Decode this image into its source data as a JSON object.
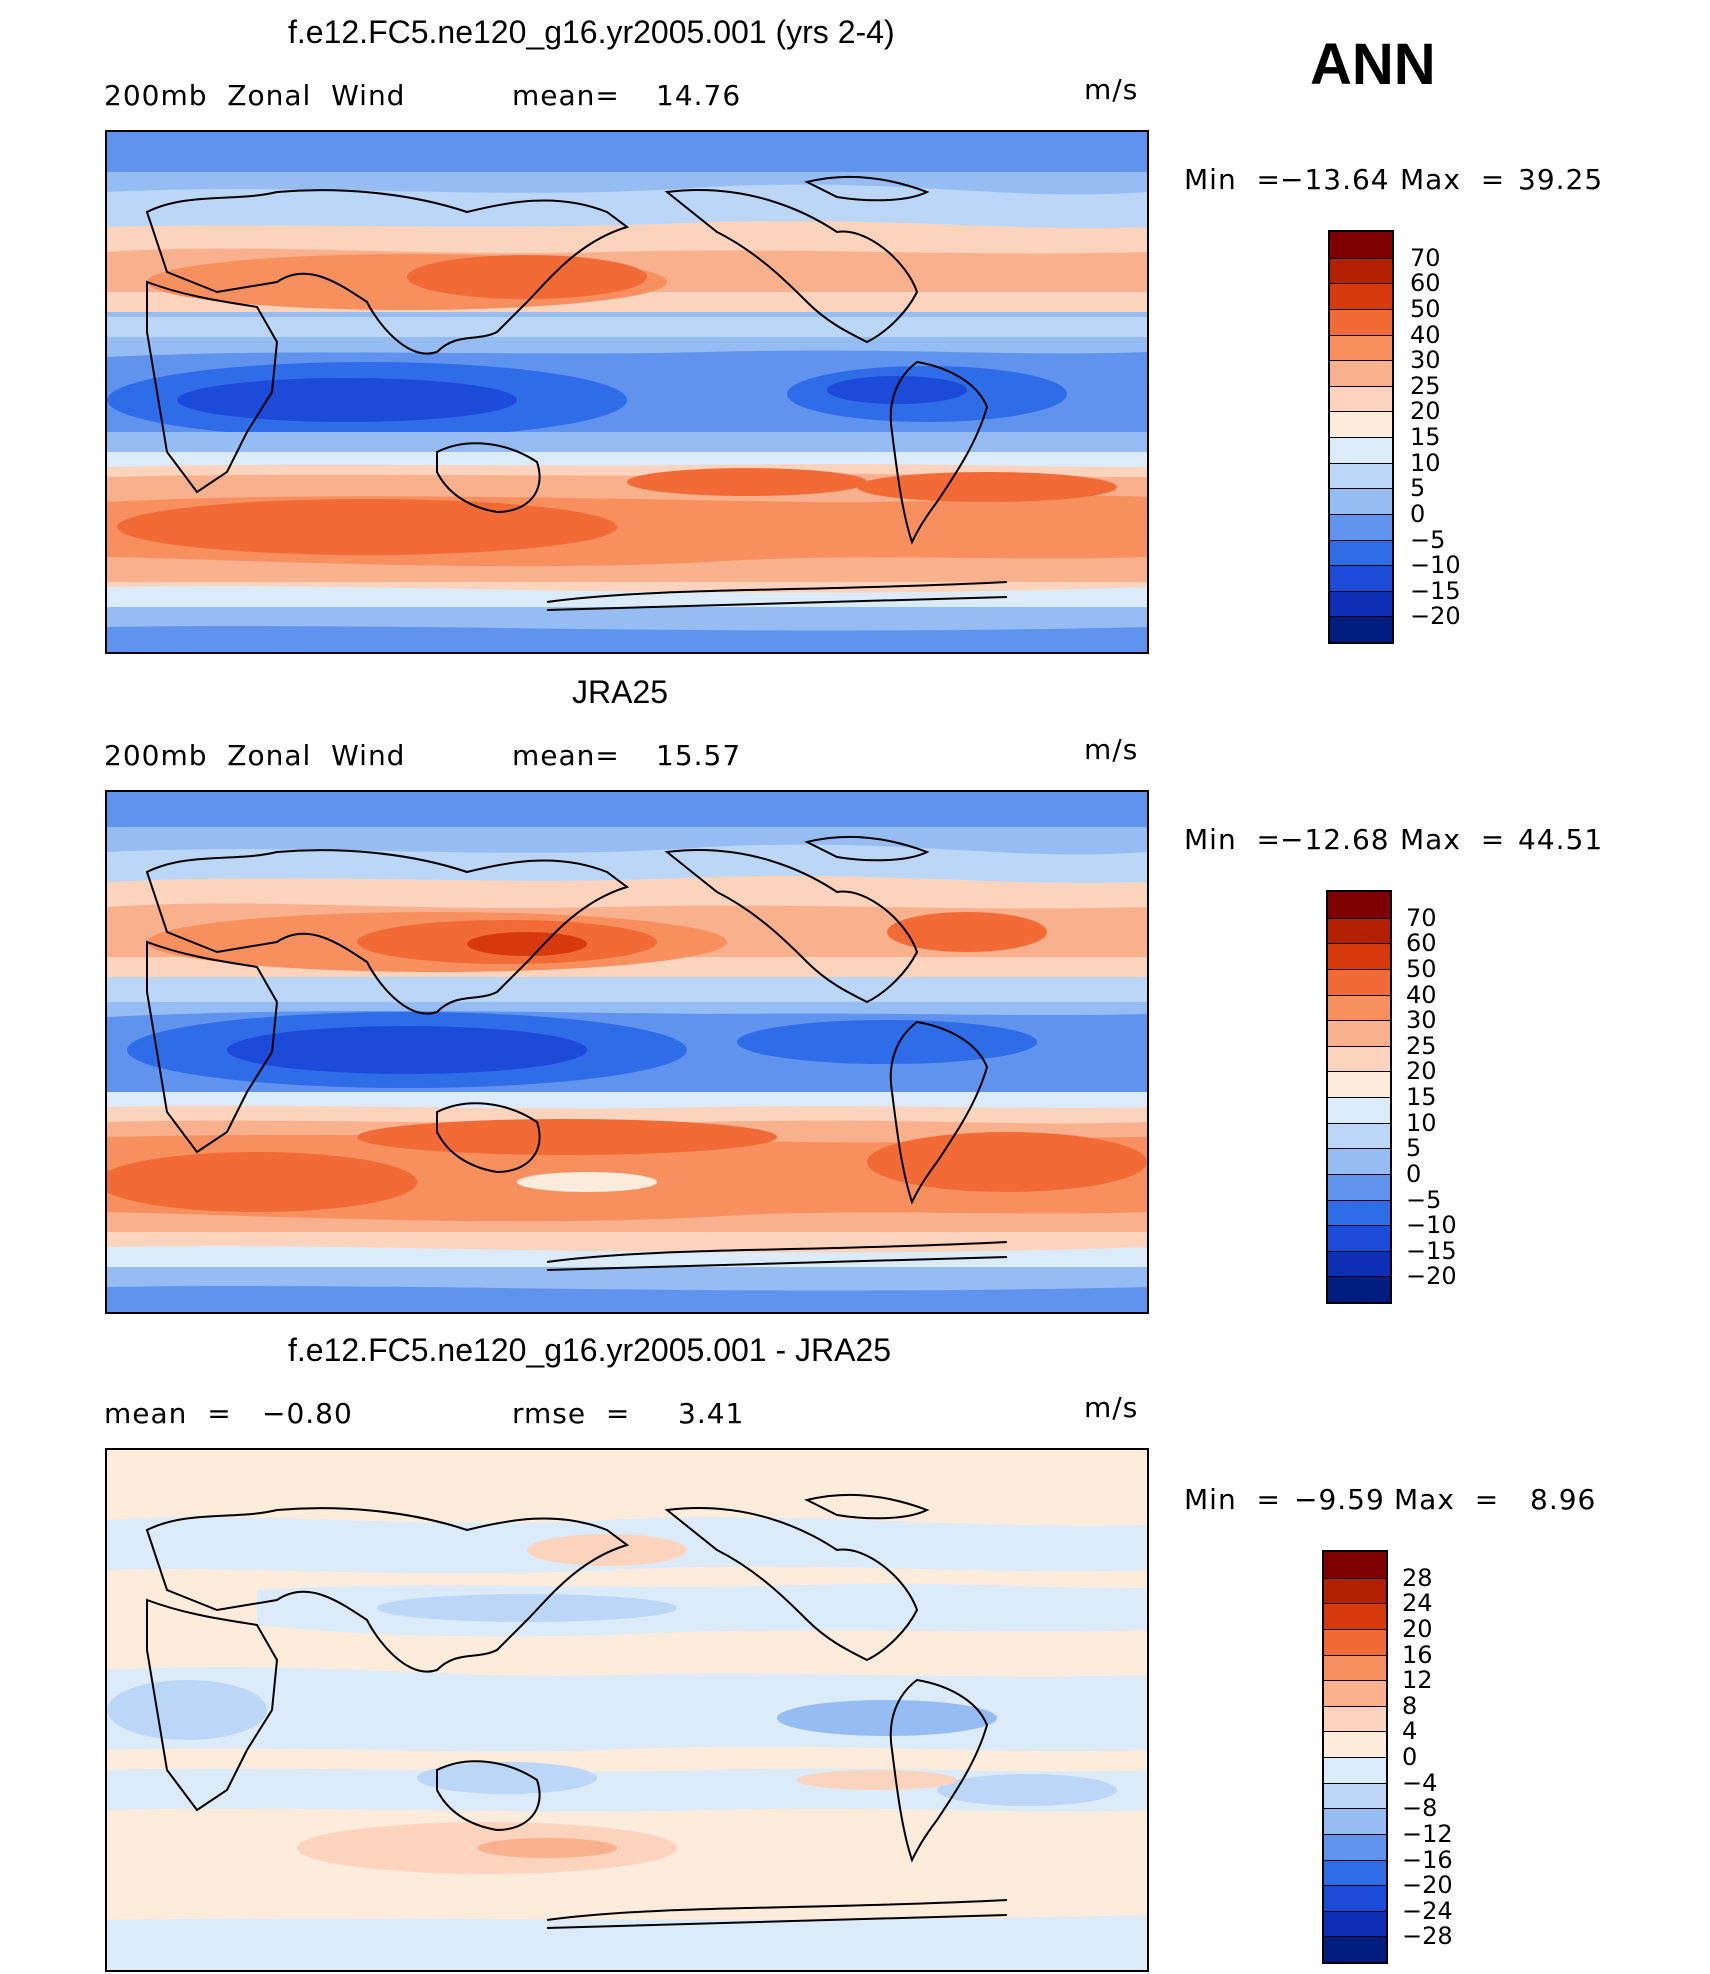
{
  "season": "ANN",
  "units": "m/s",
  "panels": [
    {
      "title": "f.e12.FC5.ne120_g16.yr2005.001 (yrs 2-4)",
      "left_label": "200mb  Zonal  Wind",
      "stat_label": "mean=",
      "stat_value": "14.76",
      "units": "m/s",
      "min_label": "Min  =",
      "min_value": "−13.64",
      "max_label": "Max  =",
      "max_value": "39.25",
      "colorbar_levels": [
        "70",
        "60",
        "50",
        "40",
        "30",
        "25",
        "20",
        "15",
        "10",
        "5",
        "0",
        "−5",
        "−10",
        "−15",
        "−20"
      ]
    },
    {
      "title": "JRA25",
      "left_label": "200mb  Zonal  Wind",
      "stat_label": "mean=",
      "stat_value": "15.57",
      "units": "m/s",
      "min_label": "Min  =",
      "min_value": "−12.68",
      "max_label": "Max  =",
      "max_value": "44.51",
      "colorbar_levels": [
        "70",
        "60",
        "50",
        "40",
        "30",
        "25",
        "20",
        "15",
        "10",
        "5",
        "0",
        "−5",
        "−10",
        "−15",
        "−20"
      ]
    },
    {
      "title": "f.e12.FC5.ne120_g16.yr2005.001 - JRA25",
      "left_label": "mean  =",
      "left_value": "−0.80",
      "stat_label": "rmse  =",
      "stat_value": "3.41",
      "units": "m/s",
      "min_label": "Min  =",
      "min_value": "−9.59",
      "max_label": "Max  =",
      "max_value": "8.96",
      "colorbar_levels": [
        "28",
        "24",
        "20",
        "16",
        "12",
        "8",
        "4",
        "0",
        "−4",
        "−8",
        "−12",
        "−16",
        "−20",
        "−24",
        "−28"
      ]
    }
  ],
  "colors": {
    "field_scale": [
      "#7f0000",
      "#b22000",
      "#d63a0c",
      "#f26a35",
      "#f7905e",
      "#f9b08d",
      "#fcd4bd",
      "#fdebdc",
      "#dcebfa",
      "#bcd6f7",
      "#95bdf3",
      "#5f93ee",
      "#2f6ce8",
      "#1b4bd8",
      "#0d2fb5",
      "#001c7f"
    ],
    "diff_scale": [
      "#7f0000",
      "#b22000",
      "#d63a0c",
      "#f26a35",
      "#f7905e",
      "#f9b08d",
      "#fcd4bd",
      "#fdebdc",
      "#dcebfa",
      "#bcd6f7",
      "#95bdf3",
      "#5f93ee",
      "#2f6ce8",
      "#1b4bd8",
      "#0d2fb5",
      "#001c7f"
    ]
  }
}
